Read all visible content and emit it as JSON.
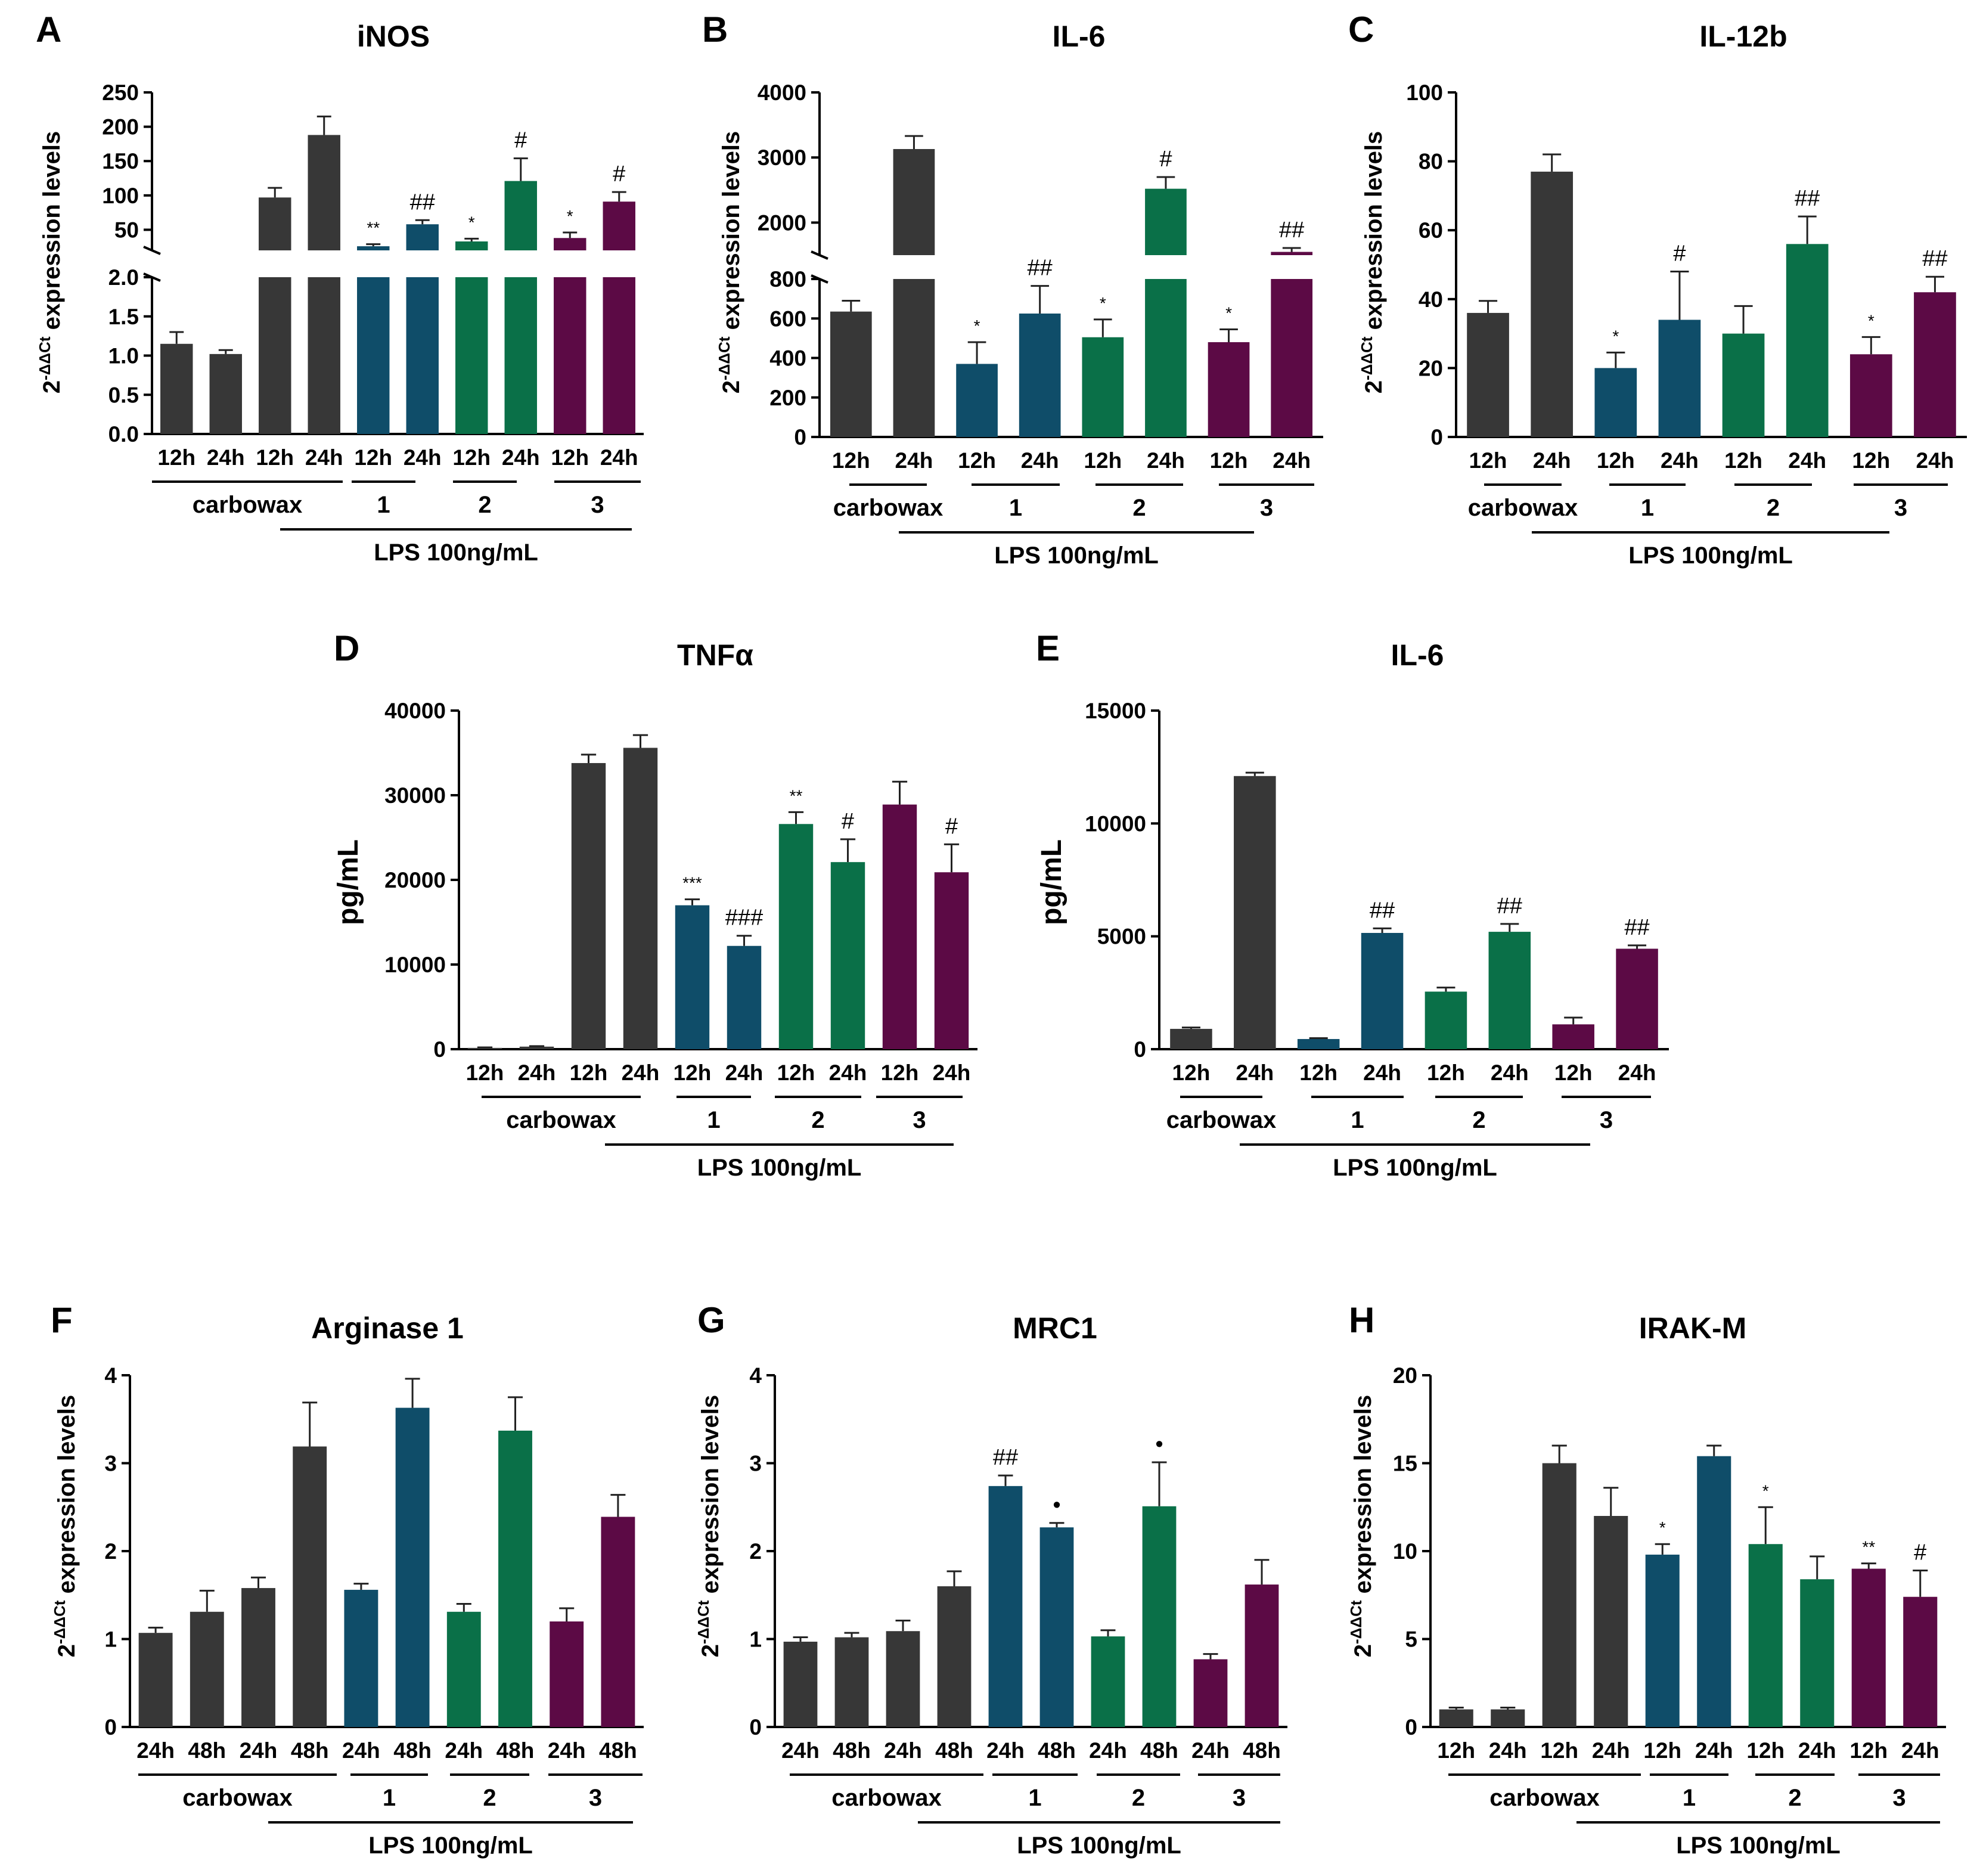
{
  "colors": {
    "carbowax": "#373737",
    "g1": "#0f4d69",
    "g2": "#0a7048",
    "g3": "#5c0a45",
    "axis": "#000000"
  },
  "treatment_label": "LPS 100ng/mL",
  "chart_data": [
    {
      "id": "A",
      "type": "bar",
      "title": "iNOS",
      "ylabel": "2-ΔΔCt expression levels",
      "categories": [
        "12h",
        "24h",
        "12h",
        "24h",
        "12h",
        "24h",
        "12h",
        "24h",
        "12h",
        "24h"
      ],
      "groups": [
        "carbowax",
        "carbowax",
        "carbowax",
        "carbowax",
        "1",
        "1",
        "2",
        "2",
        "3",
        "3"
      ],
      "values": [
        1.15,
        1.02,
        97,
        188,
        26,
        58,
        33,
        121,
        38,
        91
      ],
      "errors": [
        0.15,
        0.05,
        14,
        27,
        3,
        6,
        4,
        33,
        8,
        14
      ],
      "colors": [
        "carbowax",
        "carbowax",
        "carbowax",
        "carbowax",
        "g1",
        "g1",
        "g2",
        "g2",
        "g3",
        "g3"
      ],
      "annotations": [
        "",
        "",
        "",
        "",
        "**",
        "##",
        "*",
        "#",
        "*",
        "#"
      ],
      "broken_axis": {
        "lower": {
          "range": [
            0,
            2.0
          ],
          "ticks": [
            0.0,
            0.5,
            1.0,
            1.5,
            2.0
          ],
          "labels": [
            "0.0",
            "0.5",
            "1.0",
            "1.5",
            "2.0"
          ]
        },
        "upper": {
          "range": [
            20,
            250
          ],
          "ticks": [
            50,
            100,
            150,
            200,
            250
          ],
          "labels": [
            "50",
            "100",
            "150",
            "200",
            "250"
          ]
        }
      },
      "group_labels": [
        "carbowax",
        "1",
        "2",
        "3"
      ]
    },
    {
      "id": "B",
      "type": "bar",
      "title": "IL-6",
      "ylabel": "2-ΔΔCt expression levels",
      "categories": [
        "12h",
        "24h",
        "12h",
        "24h",
        "12h",
        "24h",
        "12h",
        "24h"
      ],
      "groups": [
        "carbowax",
        "carbowax",
        "1",
        "1",
        "2",
        "2",
        "3",
        "3"
      ],
      "values": [
        635,
        3130,
        370,
        625,
        505,
        2520,
        480,
        1550
      ],
      "errors": [
        55,
        200,
        110,
        140,
        90,
        180,
        65,
        60
      ],
      "colors": [
        "carbowax",
        "carbowax",
        "g1",
        "g1",
        "g2",
        "g2",
        "g3",
        "g3"
      ],
      "annotations": [
        "",
        "",
        "*",
        "##",
        "*",
        "#",
        "*",
        "##"
      ],
      "broken_axis": {
        "lower": {
          "range": [
            0,
            800
          ],
          "ticks": [
            0,
            200,
            400,
            600,
            800
          ],
          "labels": [
            "0",
            "200",
            "400",
            "600",
            "800"
          ]
        },
        "upper": {
          "range": [
            1500,
            4000
          ],
          "ticks": [
            2000,
            3000,
            4000
          ],
          "labels": [
            "2000",
            "3000",
            "4000"
          ]
        }
      },
      "group_labels": [
        "carbowax",
        "1",
        "2",
        "3"
      ]
    },
    {
      "id": "C",
      "type": "bar",
      "title": "IL-12b",
      "ylabel": "2-ΔΔCt expression levels",
      "categories": [
        "12h",
        "24h",
        "12h",
        "24h",
        "12h",
        "24h",
        "12h",
        "24h"
      ],
      "groups": [
        "carbowax",
        "carbowax",
        "1",
        "1",
        "2",
        "2",
        "3",
        "3"
      ],
      "values": [
        36,
        77,
        20,
        34,
        30,
        56,
        24,
        42
      ],
      "errors": [
        3.5,
        5,
        4.5,
        14,
        8,
        8,
        5,
        4.5
      ],
      "colors": [
        "carbowax",
        "carbowax",
        "g1",
        "g1",
        "g2",
        "g2",
        "g3",
        "g3"
      ],
      "annotations": [
        "",
        "",
        "*",
        "#",
        "",
        "##",
        "*",
        "##"
      ],
      "ylim": [
        0,
        100
      ],
      "ticks": [
        0,
        20,
        40,
        60,
        80,
        100
      ],
      "group_labels": [
        "carbowax",
        "1",
        "2",
        "3"
      ]
    },
    {
      "id": "D",
      "type": "bar",
      "title": "TNFα",
      "ylabel": "pg/mL",
      "categories": [
        "12h",
        "24h",
        "12h",
        "24h",
        "12h",
        "24h",
        "12h",
        "24h",
        "12h",
        "24h"
      ],
      "groups": [
        "carbowax",
        "carbowax",
        "carbowax",
        "carbowax",
        "1",
        "1",
        "2",
        "2",
        "3",
        "3"
      ],
      "values": [
        150,
        300,
        33800,
        35600,
        17000,
        12200,
        26600,
        22100,
        28900,
        20900
      ],
      "errors": [
        60,
        60,
        1000,
        1500,
        700,
        1200,
        1400,
        2700,
        2700,
        3300
      ],
      "colors": [
        "carbowax",
        "carbowax",
        "carbowax",
        "carbowax",
        "g1",
        "g1",
        "g2",
        "g2",
        "g3",
        "g3"
      ],
      "annotations": [
        "",
        "",
        "",
        "",
        "***",
        "###",
        "**",
        "#",
        "",
        "#"
      ],
      "ylim": [
        0,
        40000
      ],
      "ticks": [
        0,
        10000,
        20000,
        30000,
        40000
      ],
      "group_labels": [
        "carbowax",
        "1",
        "2",
        "3"
      ]
    },
    {
      "id": "E",
      "type": "bar",
      "title": "IL-6",
      "ylabel": "pg/mL",
      "categories": [
        "12h",
        "24h",
        "12h",
        "24h",
        "12h",
        "24h",
        "12h",
        "24h"
      ],
      "groups": [
        "carbowax",
        "carbowax",
        "1",
        "1",
        "2",
        "2",
        "3",
        "3"
      ],
      "values": [
        900,
        12100,
        450,
        5150,
        2550,
        5200,
        1100,
        4450
      ],
      "errors": [
        60,
        150,
        40,
        200,
        180,
        350,
        300,
        150
      ],
      "colors": [
        "carbowax",
        "carbowax",
        "g1",
        "g1",
        "g2",
        "g2",
        "g3",
        "g3"
      ],
      "annotations": [
        "",
        "",
        "",
        "##",
        "",
        "##",
        "",
        "##"
      ],
      "ylim": [
        0,
        15000
      ],
      "ticks": [
        0,
        5000,
        10000,
        15000
      ],
      "group_labels": [
        "carbowax",
        "1",
        "2",
        "3"
      ]
    },
    {
      "id": "F",
      "type": "bar",
      "title": "Arginase 1",
      "ylabel": "2-ΔΔCt expression levels",
      "categories": [
        "24h",
        "48h",
        "24h",
        "48h",
        "24h",
        "48h",
        "24h",
        "48h",
        "24h",
        "48h"
      ],
      "groups": [
        "carbowax",
        "carbowax",
        "carbowax",
        "carbowax",
        "1",
        "1",
        "2",
        "2",
        "3",
        "3"
      ],
      "values": [
        1.07,
        1.31,
        1.58,
        3.19,
        1.56,
        3.63,
        1.31,
        3.37,
        1.2,
        2.39
      ],
      "errors": [
        0.06,
        0.24,
        0.12,
        0.5,
        0.07,
        0.33,
        0.09,
        0.38,
        0.15,
        0.25
      ],
      "colors": [
        "carbowax",
        "carbowax",
        "carbowax",
        "carbowax",
        "g1",
        "g1",
        "g2",
        "g2",
        "g3",
        "g3"
      ],
      "annotations": [
        "",
        "",
        "",
        "",
        "",
        "",
        "",
        "",
        "",
        ""
      ],
      "ylim": [
        0,
        4
      ],
      "ticks": [
        0,
        1,
        2,
        3,
        4
      ],
      "group_labels": [
        "carbowax",
        "1",
        "2",
        "3"
      ]
    },
    {
      "id": "G",
      "type": "bar",
      "title": "MRC1",
      "ylabel": "2-ΔΔCt expression levels",
      "categories": [
        "24h",
        "48h",
        "24h",
        "48h",
        "24h",
        "48h",
        "24h",
        "48h",
        "24h",
        "48h"
      ],
      "groups": [
        "carbowax",
        "carbowax",
        "carbowax",
        "carbowax",
        "1",
        "1",
        "2",
        "2",
        "3",
        "3"
      ],
      "values": [
        0.97,
        1.02,
        1.09,
        1.6,
        2.74,
        2.27,
        1.03,
        2.51,
        0.77,
        1.62
      ],
      "errors": [
        0.05,
        0.05,
        0.12,
        0.17,
        0.12,
        0.05,
        0.07,
        0.5,
        0.06,
        0.28
      ],
      "colors": [
        "carbowax",
        "carbowax",
        "carbowax",
        "carbowax",
        "g1",
        "g1",
        "g2",
        "g2",
        "g3",
        "g3"
      ],
      "annotations": [
        "",
        "",
        "",
        "",
        "##",
        "•",
        "",
        "•",
        "",
        ""
      ],
      "ylim": [
        0,
        4
      ],
      "ticks": [
        0,
        1,
        2,
        3,
        4
      ],
      "group_labels": [
        "carbowax",
        "1",
        "2",
        "3"
      ]
    },
    {
      "id": "H",
      "type": "bar",
      "title": "IRAK-M",
      "ylabel": "2-ΔΔCt expression levels",
      "categories": [
        "12h",
        "24h",
        "12h",
        "24h",
        "12h",
        "24h",
        "12h",
        "24h",
        "12h",
        "24h"
      ],
      "groups": [
        "carbowax",
        "carbowax",
        "carbowax",
        "carbowax",
        "1",
        "1",
        "2",
        "2",
        "3",
        "3"
      ],
      "values": [
        1.0,
        1.0,
        15.0,
        12.0,
        9.8,
        15.4,
        10.4,
        8.4,
        9.0,
        7.4
      ],
      "errors": [
        0.1,
        0.1,
        1.0,
        1.6,
        0.6,
        0.6,
        2.1,
        1.3,
        0.3,
        1.5
      ],
      "colors": [
        "carbowax",
        "carbowax",
        "carbowax",
        "carbowax",
        "g1",
        "g1",
        "g2",
        "g2",
        "g3",
        "g3"
      ],
      "annotations": [
        "",
        "",
        "",
        "",
        "*",
        "",
        "*",
        "",
        "**",
        "#"
      ],
      "ylim": [
        0,
        20
      ],
      "ticks": [
        0,
        5,
        10,
        15,
        20
      ],
      "group_labels": [
        "carbowax",
        "1",
        "2",
        "3"
      ]
    }
  ]
}
